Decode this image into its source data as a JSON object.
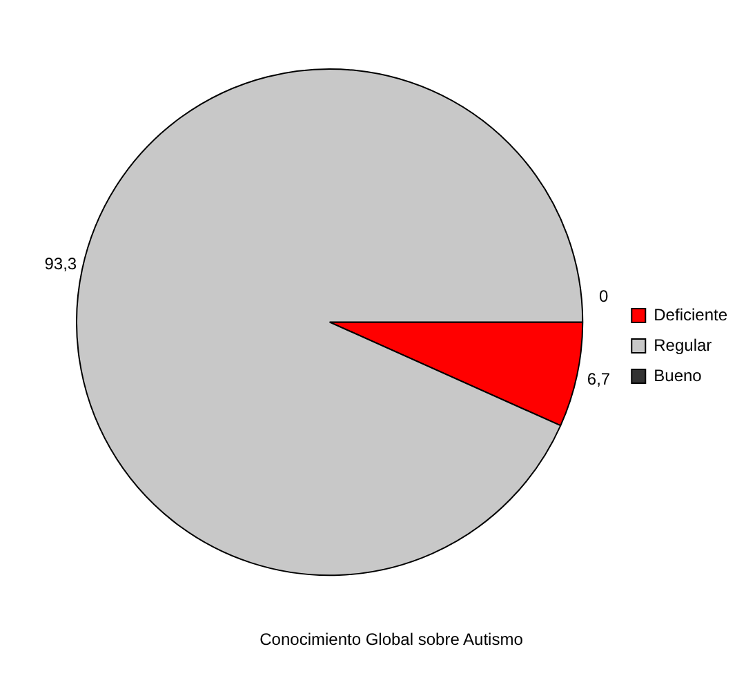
{
  "chart_data": {
    "type": "pie",
    "title": "Conocimiento Global sobre Autismo",
    "categories": [
      "Deficiente",
      "Regular",
      "Bueno"
    ],
    "values": [
      6.7,
      93.3,
      0
    ],
    "colors": [
      "#ff0000",
      "#c8c8c8",
      "#333333"
    ],
    "value_labels": [
      "6,7",
      "93,3",
      "0"
    ],
    "legend": "right"
  }
}
